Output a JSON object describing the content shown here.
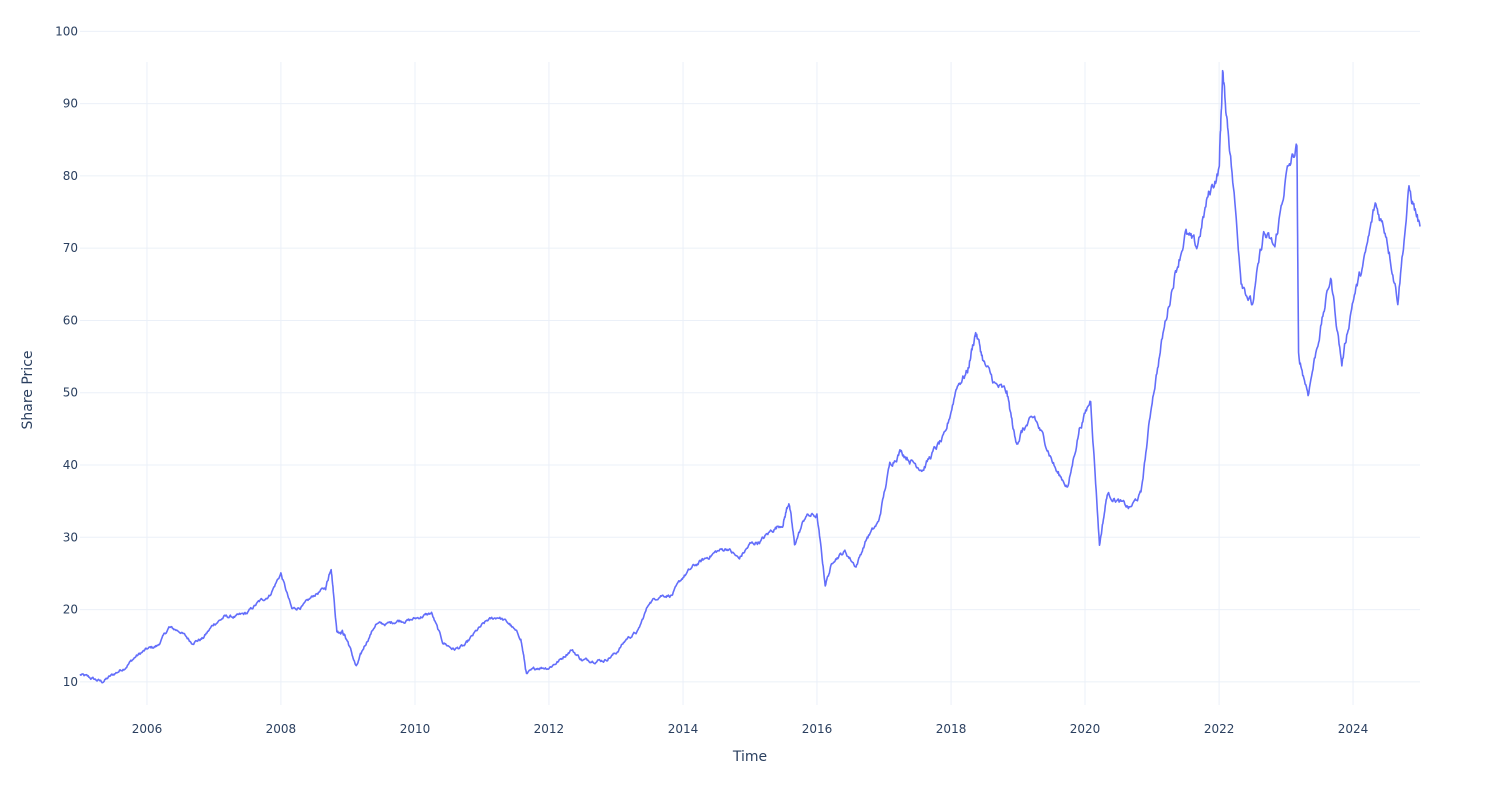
{
  "chart_data": {
    "type": "line",
    "title": "",
    "xlabel": "Time",
    "ylabel": "Share Price",
    "xlim": [
      "2005-01-01",
      "2024-12-31"
    ],
    "ylim": [
      6.8,
      98.8
    ],
    "x_ticks": [
      "2006",
      "2008",
      "2010",
      "2012",
      "2014",
      "2016",
      "2018",
      "2020",
      "2022",
      "2024"
    ],
    "y_ticks": [
      10,
      20,
      30,
      40,
      50,
      60,
      70,
      80,
      90,
      100
    ],
    "grid": true,
    "legend": "none",
    "colors": {
      "line": "#636efa",
      "grid": "#ebf0f8",
      "text": "#2a3f5f",
      "background": "#ffffff"
    },
    "series": [
      {
        "x": [
          "2005-01-01",
          "2005-03-01",
          "2005-05-01",
          "2005-07-01",
          "2005-09-01",
          "2005-11-01",
          "2006-01-01",
          "2006-03-01",
          "2006-05-01",
          "2006-07-01",
          "2006-09-01",
          "2006-11-01",
          "2007-01-01",
          "2007-03-01",
          "2007-05-01",
          "2007-07-01",
          "2007-09-01",
          "2007-11-01",
          "2008-01-01",
          "2008-03-01",
          "2008-05-01",
          "2008-07-01",
          "2008-09-01",
          "2008-10-01",
          "2008-11-01",
          "2008-12-01",
          "2009-01-01",
          "2009-02-15",
          "2009-04-01",
          "2009-06-01",
          "2009-08-01",
          "2009-10-01",
          "2009-12-01",
          "2010-02-01",
          "2010-04-01",
          "2010-06-01",
          "2010-08-01",
          "2010-10-01",
          "2010-12-01",
          "2011-02-01",
          "2011-04-01",
          "2011-06-01",
          "2011-08-01",
          "2011-09-01",
          "2011-11-01",
          "2012-01-01",
          "2012-03-01",
          "2012-05-01",
          "2012-07-01",
          "2012-09-01",
          "2012-11-01",
          "2013-01-01",
          "2013-03-01",
          "2013-05-01",
          "2013-07-01",
          "2013-09-01",
          "2013-11-01",
          "2014-01-01",
          "2014-03-01",
          "2014-05-01",
          "2014-07-01",
          "2014-09-01",
          "2014-11-01",
          "2015-01-01",
          "2015-03-01",
          "2015-05-01",
          "2015-07-01",
          "2015-08-01",
          "2015-09-01",
          "2015-11-01",
          "2016-01-01",
          "2016-02-15",
          "2016-04-01",
          "2016-06-01",
          "2016-08-01",
          "2016-10-01",
          "2016-12-01",
          "2017-02-01",
          "2017-04-01",
          "2017-06-01",
          "2017-08-01",
          "2017-10-01",
          "2017-12-01",
          "2018-02-01",
          "2018-04-01",
          "2018-05-15",
          "2018-07-01",
          "2018-09-01",
          "2018-11-01",
          "2018-12-20",
          "2019-02-01",
          "2019-04-01",
          "2019-06-01",
          "2019-08-01",
          "2019-10-01",
          "2019-12-01",
          "2020-02-01",
          "2020-03-20",
          "2020-05-01",
          "2020-07-01",
          "2020-09-01",
          "2020-11-01",
          "2021-01-01",
          "2021-03-01",
          "2021-05-01",
          "2021-07-01",
          "2021-09-01",
          "2021-11-01",
          "2022-01-01",
          "2022-01-20",
          "2022-03-01",
          "2022-05-01",
          "2022-07-01",
          "2022-09-01",
          "2022-11-01",
          "2023-01-01",
          "2023-03-01",
          "2023-03-10",
          "2023-05-01",
          "2023-07-01",
          "2023-09-01",
          "2023-11-01",
          "2024-01-01",
          "2024-03-01",
          "2024-05-01",
          "2024-07-01",
          "2024-09-01",
          "2024-11-01",
          "2024-12-31"
        ],
        "y": [
          11,
          10.5,
          10,
          11,
          12,
          13.5,
          14.5,
          15,
          17.5,
          17,
          15.5,
          16,
          18,
          19,
          19,
          19.5,
          21,
          22,
          25,
          20,
          20.5,
          22,
          23,
          26,
          17,
          17,
          15.5,
          12,
          15,
          18,
          18,
          18.5,
          18.5,
          19,
          19.5,
          15.5,
          14.5,
          15,
          17,
          18.5,
          19,
          18,
          16,
          11,
          12,
          12,
          13,
          14.5,
          13,
          13,
          13,
          14,
          16,
          17,
          21,
          22,
          22,
          24.5,
          26,
          27,
          28,
          28.5,
          27,
          29,
          29.5,
          31,
          32,
          35,
          29,
          33,
          33,
          23.5,
          27,
          28,
          26,
          30,
          32,
          40,
          42,
          40.5,
          39.5,
          42,
          44,
          51,
          53,
          58.5,
          54,
          51,
          50,
          43,
          45,
          46.5,
          43,
          39,
          37,
          45,
          49,
          29,
          36,
          35,
          34,
          36,
          49,
          58,
          66,
          72,
          70,
          77,
          81,
          94,
          84,
          66,
          62,
          72,
          70,
          80,
          84,
          55,
          50,
          58,
          66,
          54,
          63,
          68,
          76,
          72,
          63,
          78,
          73
        ]
      }
    ]
  }
}
